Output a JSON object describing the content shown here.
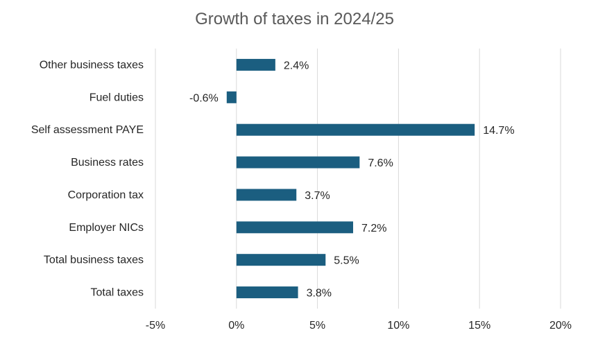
{
  "chart_data": {
    "type": "bar",
    "orientation": "horizontal",
    "title": "Growth of taxes in 2024/25",
    "categories": [
      "Other business taxes",
      "Fuel duties",
      "Self assessment PAYE",
      "Business rates",
      "Corporation tax",
      "Employer NICs",
      "Total business taxes",
      "Total taxes"
    ],
    "values": [
      2.4,
      -0.6,
      14.7,
      7.6,
      3.7,
      7.2,
      5.5,
      3.8
    ],
    "data_labels": [
      "2.4%",
      "-0.6%",
      "14.7%",
      "7.6%",
      "3.7%",
      "7.2%",
      "5.5%",
      "3.8%"
    ],
    "xlim": [
      -5,
      20
    ],
    "xticks": [
      -5,
      0,
      5,
      10,
      15,
      20
    ],
    "xtick_labels": [
      "-5%",
      "0%",
      "5%",
      "10%",
      "15%",
      "20%"
    ],
    "xlabel": "",
    "ylabel": "",
    "grid": true,
    "legend": "none",
    "colors": {
      "bar": "#1B5E80",
      "grid": "#D9D9D9",
      "title": "#595959",
      "text": "#262626"
    }
  }
}
